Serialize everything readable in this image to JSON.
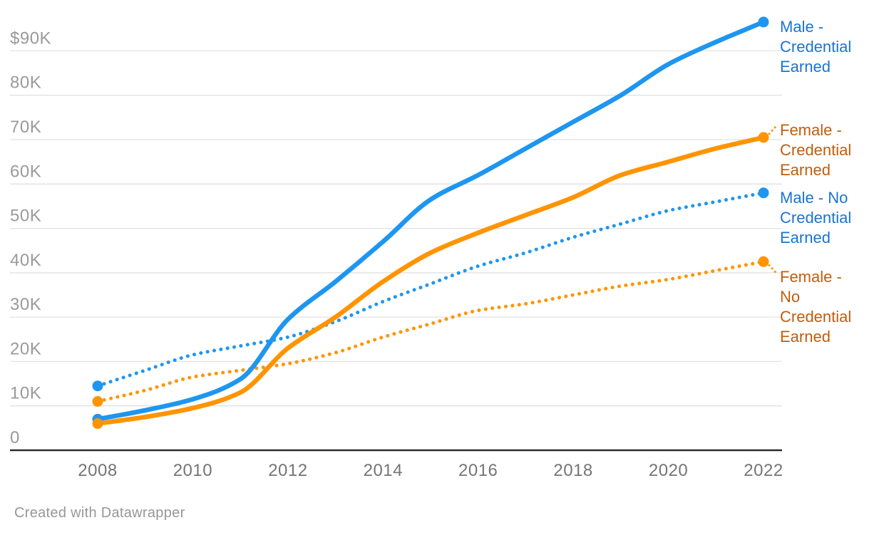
{
  "footer": {
    "credit": "Created with Datawrapper"
  },
  "colors": {
    "male_line": "#1E96F0",
    "female_line": "#FF9400",
    "male_label": "#1A74D2",
    "female_label": "#C05D0D",
    "grid": "#e2e2e2",
    "axis": "#2b2b2b",
    "y_tick_text": "#9a9a9a",
    "x_tick_text": "#757575",
    "background": "#ffffff"
  },
  "chart_data": {
    "type": "line",
    "title": "",
    "xlabel": "",
    "ylabel": "",
    "unit": "USD (thousands)",
    "grid": "horizontal",
    "legend_position": "right-annotations",
    "x": [
      2008,
      2009,
      2010,
      2011,
      2012,
      2013,
      2014,
      2015,
      2016,
      2017,
      2018,
      2019,
      2020,
      2021,
      2022
    ],
    "x_ticks": [
      2008,
      2010,
      2012,
      2014,
      2016,
      2018,
      2020,
      2022
    ],
    "x_tick_labels": [
      "2008",
      "2010",
      "2012",
      "2014",
      "2016",
      "2018",
      "2020",
      "2022"
    ],
    "y_ticks": [
      90,
      80,
      70,
      60,
      50,
      40,
      30,
      20,
      10,
      0
    ],
    "y_tick_labels": [
      "$90K",
      "80K",
      "70K",
      "60K",
      "50K",
      "40K",
      "30K",
      "20K",
      "10K",
      "0"
    ],
    "ylim": [
      0,
      97
    ],
    "xlim": [
      2008,
      2022
    ],
    "series": [
      {
        "name": "Male - Credential Earned",
        "label_lines": [
          "Male -",
          "Credential",
          "Earned"
        ],
        "style": "solid",
        "color_key": "male",
        "values": [
          7,
          9,
          11.5,
          16,
          29.5,
          38,
          47,
          56.5,
          62,
          68,
          74,
          80,
          87,
          92,
          96.5
        ]
      },
      {
        "name": "Female - Credential Earned",
        "label_lines": [
          "Female -",
          "Credential",
          "Earned"
        ],
        "style": "solid",
        "color_key": "female",
        "values": [
          6,
          7.5,
          9.5,
          13,
          23,
          30,
          38,
          44.5,
          49,
          53,
          57,
          62,
          65,
          68,
          70.5
        ]
      },
      {
        "name": "Male - No Credential Earned",
        "label_lines": [
          "Male - No",
          "Credential",
          "Earned"
        ],
        "style": "dotted",
        "color_key": "male",
        "values": [
          14.5,
          18,
          21.5,
          23.5,
          25.5,
          29,
          33.5,
          37.5,
          41.5,
          44.5,
          48,
          51,
          54,
          56,
          58
        ]
      },
      {
        "name": "Female - No Credential Earned",
        "label_lines": [
          "Female -",
          "No",
          "Credential",
          "Earned"
        ],
        "style": "dotted",
        "color_key": "female",
        "values": [
          11,
          13.5,
          16.5,
          18,
          19.5,
          22,
          25.5,
          28.5,
          31.5,
          33,
          35,
          37,
          38.5,
          40.5,
          42.5
        ]
      }
    ]
  }
}
